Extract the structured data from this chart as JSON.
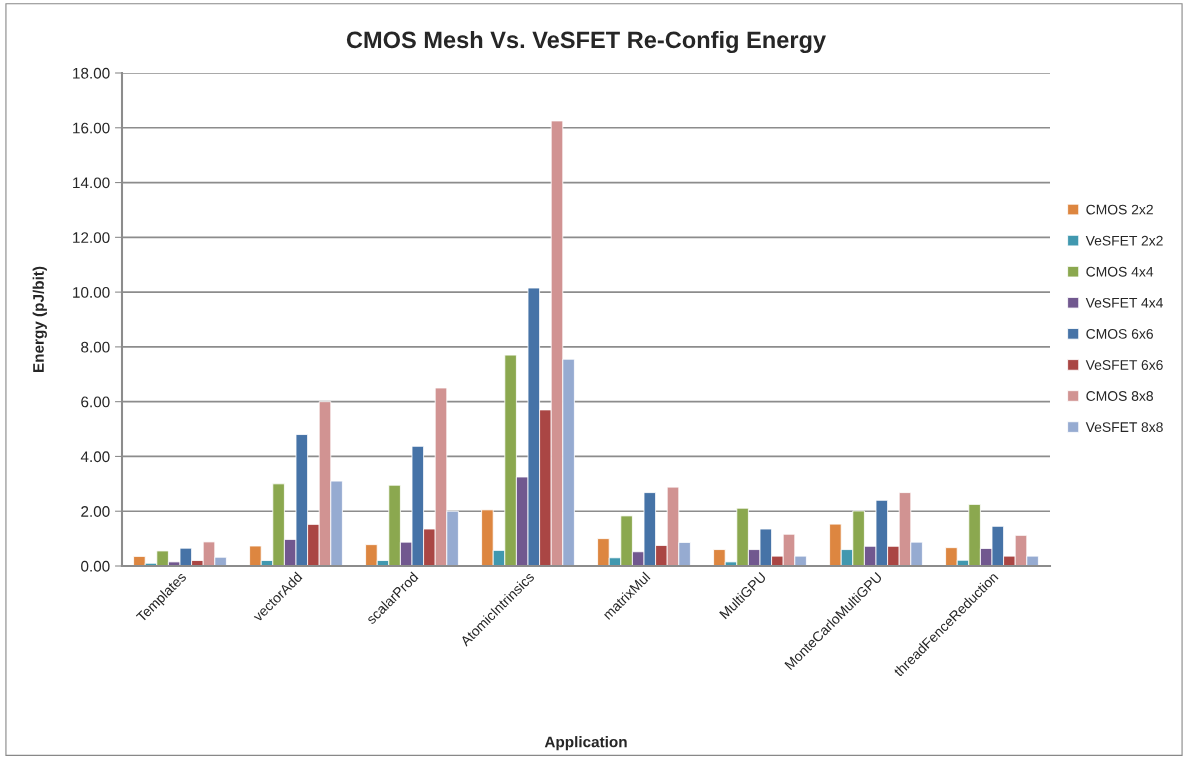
{
  "chart_data": {
    "type": "bar",
    "title": "CMOS Mesh Vs. VeSFET Re-Config Energy",
    "xlabel": "Application",
    "ylabel": "Energy (pJ/bit)",
    "categories": [
      "Templates",
      "vectorAdd",
      "scalarProd",
      "AtomicIntrinsics",
      "matrixMul",
      "MultiGPU",
      "MonteCarloMultiGPU",
      "threadFenceReduction"
    ],
    "series": [
      {
        "name": "CMOS 2x2",
        "color": "#dd8640",
        "values": [
          0.35,
          0.73,
          0.78,
          2.05,
          1.0,
          0.6,
          1.53,
          0.67
        ]
      },
      {
        "name": "VeSFET 2x2",
        "color": "#4198af",
        "values": [
          0.1,
          0.2,
          0.2,
          0.57,
          0.3,
          0.15,
          0.6,
          0.21
        ]
      },
      {
        "name": "CMOS 4x4",
        "color": "#8ba84f",
        "values": [
          0.55,
          3.0,
          2.95,
          7.7,
          1.83,
          2.11,
          2.01,
          2.25
        ]
      },
      {
        "name": "VeSFET 4x4",
        "color": "#71588f",
        "values": [
          0.15,
          0.97,
          0.87,
          3.25,
          0.52,
          0.6,
          0.72,
          0.64
        ]
      },
      {
        "name": "CMOS 6x6",
        "color": "#4673a7",
        "values": [
          0.65,
          4.8,
          4.37,
          10.15,
          2.68,
          1.35,
          2.4,
          1.45
        ]
      },
      {
        "name": "VeSFET 6x6",
        "color": "#aa4644",
        "values": [
          0.2,
          1.52,
          1.35,
          5.7,
          0.75,
          0.36,
          0.72,
          0.36
        ]
      },
      {
        "name": "CMOS 8x8",
        "color": "#d19392",
        "values": [
          0.88,
          6.0,
          6.5,
          16.25,
          2.88,
          1.16,
          2.68,
          1.12
        ]
      },
      {
        "name": "VeSFET 8x8",
        "color": "#96abd1",
        "values": [
          0.32,
          3.1,
          2.0,
          7.55,
          0.86,
          0.36,
          0.87,
          0.36
        ]
      }
    ],
    "ylim": [
      0,
      18
    ],
    "yticks": [
      {
        "value": 0,
        "label": "0.00"
      },
      {
        "value": 2,
        "label": "2.00"
      },
      {
        "value": 4,
        "label": "4.00"
      },
      {
        "value": 6,
        "label": "6.00"
      },
      {
        "value": 8,
        "label": "8.00"
      },
      {
        "value": 10,
        "label": "10.00"
      },
      {
        "value": 12,
        "label": "12.00"
      },
      {
        "value": 14,
        "label": "14.00"
      },
      {
        "value": 16,
        "label": "16.00"
      },
      {
        "value": 18,
        "label": "18.00"
      }
    ],
    "grid": "y",
    "legend": "right"
  }
}
